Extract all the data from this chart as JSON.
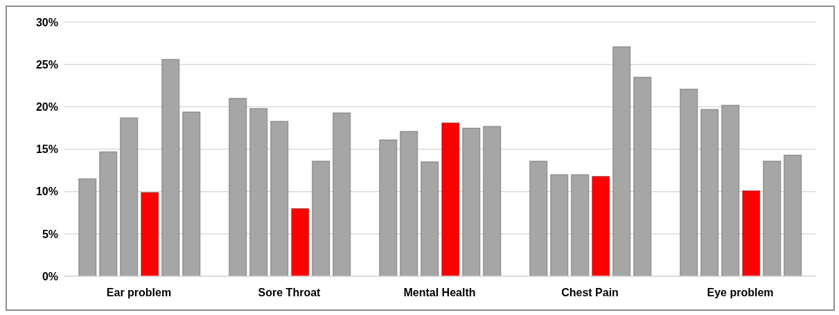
{
  "chart_data": {
    "type": "bar",
    "categories": [
      "Ear problem",
      "Sore Throat",
      "Mental Health",
      "Chest Pain",
      "Eye problem"
    ],
    "series": [
      {
        "values": [
          11.5,
          21.0,
          16.1,
          13.6,
          22.1
        ],
        "colors": [
          "#a6a6a6",
          "#a6a6a6",
          "#a6a6a6",
          "#a6a6a6",
          "#a6a6a6"
        ]
      },
      {
        "values": [
          14.7,
          19.8,
          17.1,
          12.0,
          19.7
        ],
        "colors": [
          "#a6a6a6",
          "#a6a6a6",
          "#a6a6a6",
          "#a6a6a6",
          "#a6a6a6"
        ]
      },
      {
        "values": [
          18.7,
          18.3,
          13.5,
          12.0,
          20.2
        ],
        "colors": [
          "#a6a6a6",
          "#a6a6a6",
          "#a6a6a6",
          "#a6a6a6",
          "#a6a6a6"
        ]
      },
      {
        "values": [
          9.9,
          8.0,
          18.1,
          11.8,
          10.1
        ],
        "colors": [
          "#ff0000",
          "#ff0000",
          "#ff0000",
          "#ff0000",
          "#ff0000"
        ]
      },
      {
        "values": [
          25.6,
          13.6,
          17.5,
          27.1,
          13.6
        ],
        "colors": [
          "#a6a6a6",
          "#a6a6a6",
          "#a6a6a6",
          "#a6a6a6",
          "#a6a6a6"
        ]
      },
      {
        "values": [
          19.4,
          19.3,
          17.7,
          23.5,
          14.3
        ],
        "colors": [
          "#a6a6a6",
          "#a6a6a6",
          "#a6a6a6",
          "#a6a6a6",
          "#a6a6a6"
        ]
      }
    ],
    "ylim": [
      0,
      30
    ],
    "yticks": [
      {
        "value": 0,
        "label": "0%"
      },
      {
        "value": 5,
        "label": "5%"
      },
      {
        "value": 10,
        "label": "10%"
      },
      {
        "value": 15,
        "label": "15%"
      },
      {
        "value": 20,
        "label": "20%"
      },
      {
        "value": 25,
        "label": "25%"
      },
      {
        "value": 30,
        "label": "30%"
      }
    ],
    "grid": "y",
    "legend": false
  }
}
